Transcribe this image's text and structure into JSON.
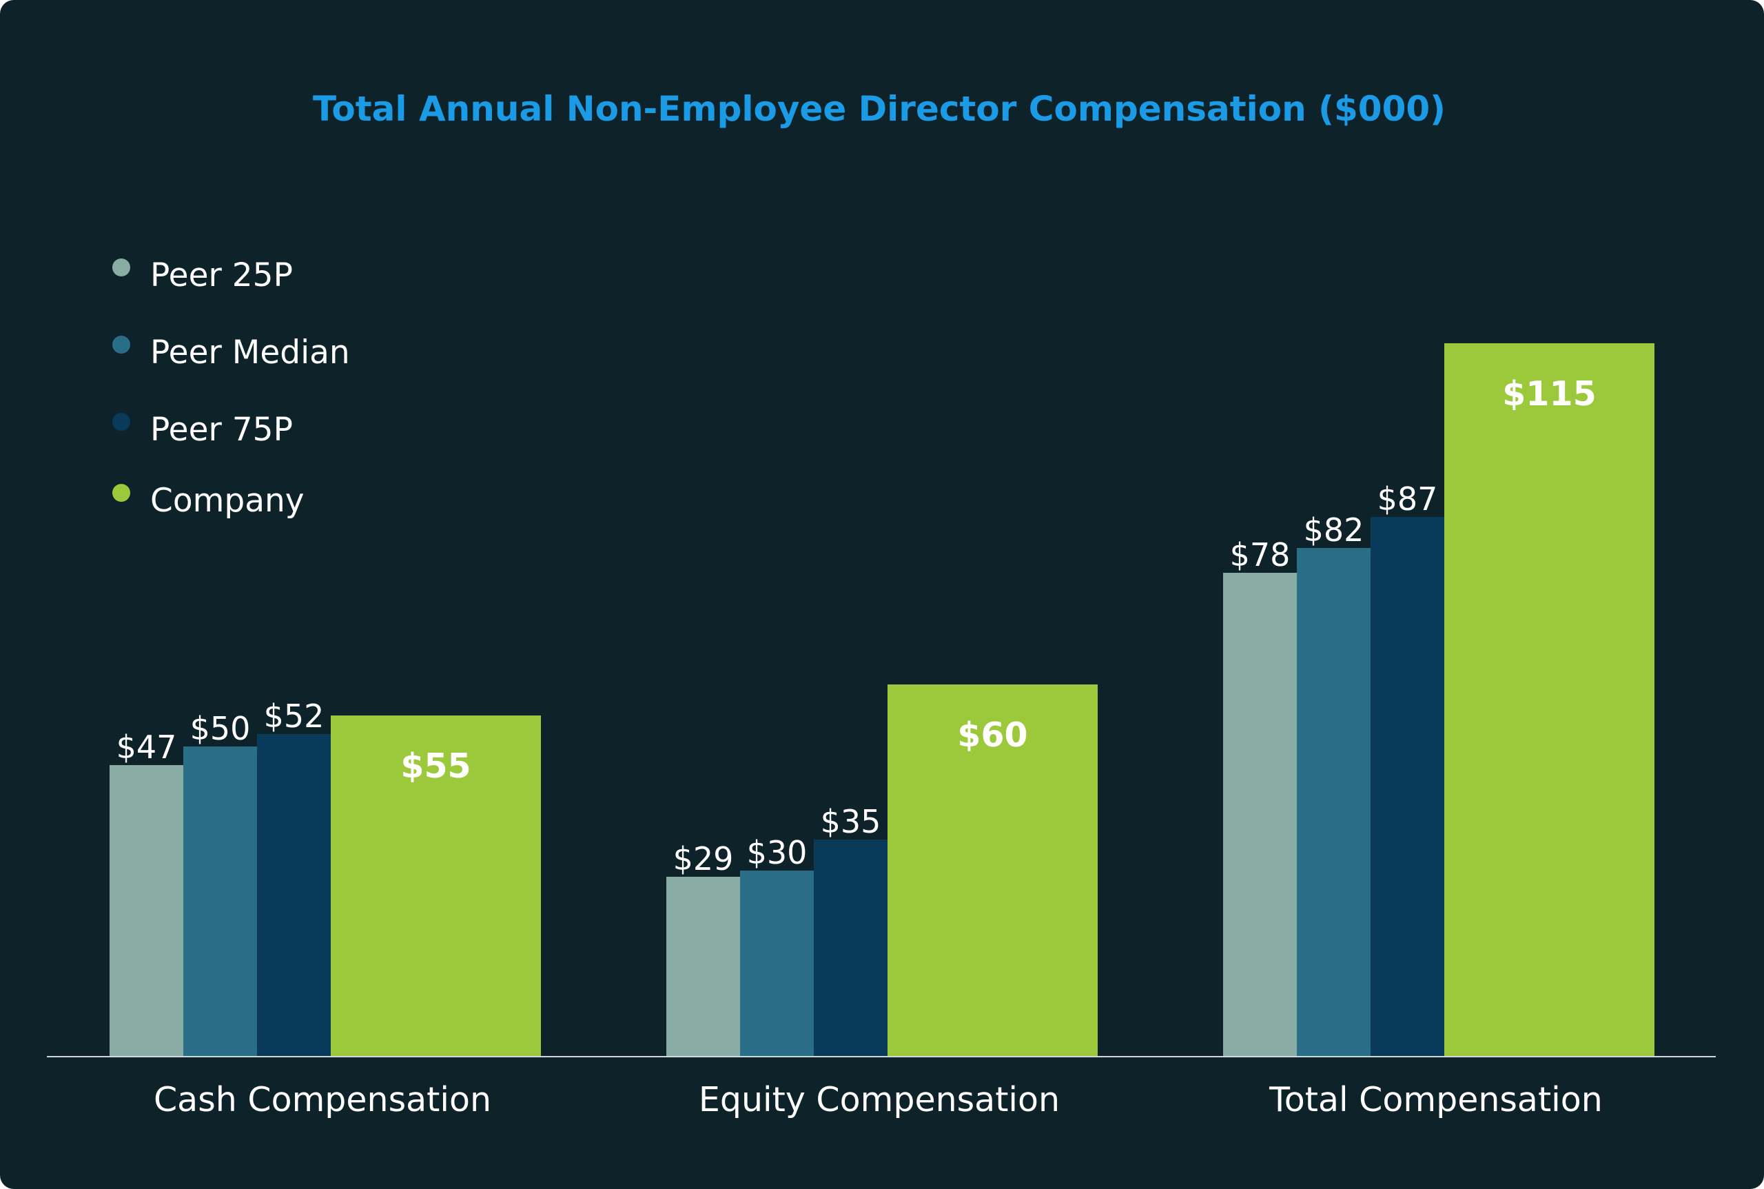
{
  "colors": {
    "background": "#0e2229",
    "title": "#1b9be6",
    "axis": "#cfd8dc",
    "peer_25p": "#89ada5",
    "peer_median": "#2a6d86",
    "peer_75p": "#093a5a",
    "company": "#9cc93c"
  },
  "chart_data": {
    "type": "bar",
    "title": "Total Annual Non-Employee Director Compensation ($000)",
    "xlabel": "",
    "ylabel": "",
    "categories": [
      "Cash Compensation",
      "Equity Compensation",
      "Total Compensation"
    ],
    "series": [
      {
        "name": "Peer 25P",
        "values": [
          47,
          29,
          78
        ],
        "labels": [
          "$47",
          "$29",
          "$78"
        ],
        "color": "#89ada5"
      },
      {
        "name": "Peer Median",
        "values": [
          50,
          30,
          82
        ],
        "labels": [
          "$50",
          "$30",
          "$82"
        ],
        "color": "#2a6d86"
      },
      {
        "name": "Peer 75P",
        "values": [
          52,
          35,
          87
        ],
        "labels": [
          "$52",
          "$35",
          "$87"
        ],
        "color": "#093a5a"
      },
      {
        "name": "Company",
        "values": [
          55,
          60,
          115
        ],
        "labels": [
          "$55",
          "$60",
          "$115"
        ],
        "color": "#9cc93c"
      }
    ],
    "ylim": [
      0,
      170
    ],
    "grid": false,
    "legend_position": "top-left"
  }
}
